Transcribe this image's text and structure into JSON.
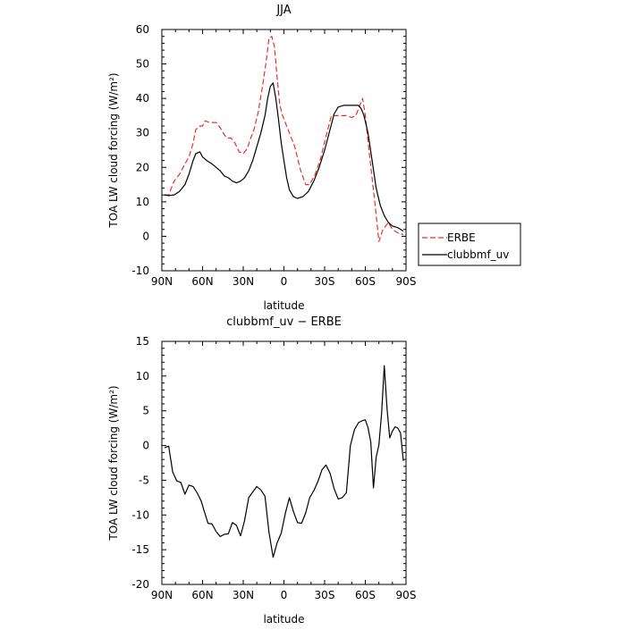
{
  "chart_data": [
    {
      "type": "line",
      "title": "JJA",
      "xlabel": "latitude",
      "ylabel": "TOA LW cloud forcing (W/m²)",
      "x_ticks": [
        {
          "value": -90,
          "label": "90N"
        },
        {
          "value": -60,
          "label": "60N"
        },
        {
          "value": -30,
          "label": "30N"
        },
        {
          "value": 0,
          "label": "0"
        },
        {
          "value": 30,
          "label": "30S"
        },
        {
          "value": 60,
          "label": "60S"
        },
        {
          "value": 90,
          "label": "90S"
        }
      ],
      "y_ticks": [
        -10,
        0,
        10,
        20,
        30,
        40,
        50,
        60
      ],
      "xlim": [
        -90,
        90
      ],
      "ylim": [
        -10,
        60
      ],
      "legend_position": "outside-right",
      "series": [
        {
          "name": "ERBE",
          "color": "#e8302a",
          "dashed": true,
          "x": [
            -88,
            -85,
            -81,
            -77,
            -73,
            -70,
            -67,
            -65,
            -62,
            -60,
            -58,
            -55,
            -50,
            -47,
            -44,
            -42,
            -39,
            -36,
            -33,
            -30,
            -27,
            -25,
            -22,
            -19,
            -16,
            -13,
            -11,
            -9,
            -7,
            -5,
            -3,
            -1,
            1,
            4,
            8,
            12,
            16,
            19,
            23,
            27,
            31,
            35,
            38,
            42,
            46,
            50,
            53,
            56,
            58,
            60,
            63,
            67,
            70,
            73,
            77,
            80,
            84,
            88
          ],
          "y": [
            12,
            12,
            16,
            18,
            21,
            23,
            27,
            31,
            32,
            32,
            33.5,
            33,
            33,
            31.5,
            29.5,
            28.5,
            28.5,
            27,
            24.5,
            24,
            25.5,
            28,
            31,
            36,
            43,
            51,
            57.5,
            58,
            55,
            46,
            38,
            35,
            33,
            30,
            26,
            19.5,
            15,
            15,
            18,
            22.5,
            29,
            35,
            35,
            35,
            35,
            34.5,
            35,
            38,
            40,
            35,
            24,
            10,
            -1.5,
            2,
            4,
            2,
            1,
            0.5
          ]
        },
        {
          "name": "clubbmf_uv",
          "color": "#000000",
          "dashed": false,
          "x": [
            -88,
            -85,
            -81,
            -77,
            -73,
            -70,
            -67,
            -65,
            -62,
            -60,
            -57,
            -53,
            -50,
            -47,
            -44,
            -41,
            -38,
            -35,
            -32,
            -29,
            -26,
            -23,
            -20,
            -17,
            -14,
            -12,
            -10,
            -8,
            -6,
            -4,
            -2,
            0,
            2,
            4,
            7,
            10,
            14,
            18,
            22,
            26,
            30,
            34,
            37,
            40,
            44,
            48,
            52,
            55,
            57,
            59,
            62,
            65,
            68,
            71,
            74,
            77,
            80,
            84,
            88
          ],
          "y": [
            12,
            11.8,
            12,
            13,
            15,
            18,
            22,
            24,
            24.5,
            23,
            22,
            21,
            20,
            19,
            17.5,
            17,
            16,
            15.5,
            16,
            17,
            19,
            22,
            26,
            30,
            35,
            40,
            43.5,
            44.5,
            40,
            34,
            27,
            22,
            17,
            13.5,
            11.5,
            11,
            11.5,
            13,
            16,
            20,
            25,
            31,
            35.5,
            37.5,
            38,
            38,
            38,
            38,
            37,
            35,
            30,
            22,
            14,
            9,
            6,
            4,
            3,
            2.5,
            1.5
          ]
        }
      ]
    },
    {
      "type": "line",
      "title": "clubbmf_uv − ERBE",
      "xlabel": "latitude",
      "ylabel": "TOA LW cloud forcing (W/m²)",
      "x_ticks": [
        {
          "value": -90,
          "label": "90N"
        },
        {
          "value": -60,
          "label": "60N"
        },
        {
          "value": -30,
          "label": "30N"
        },
        {
          "value": 0,
          "label": "0"
        },
        {
          "value": 30,
          "label": "30S"
        },
        {
          "value": 60,
          "label": "60S"
        },
        {
          "value": 90,
          "label": "90S"
        }
      ],
      "y_ticks": [
        -20,
        -15,
        -10,
        -5,
        0,
        5,
        10,
        15
      ],
      "xlim": [
        -90,
        90
      ],
      "ylim": [
        -20,
        15
      ],
      "series": [
        {
          "name": "",
          "color": "#000000",
          "dashed": false,
          "x": [
            -88,
            -85,
            -82,
            -79,
            -76,
            -73,
            -70,
            -67,
            -64,
            -61,
            -59,
            -56,
            -53,
            -50,
            -47,
            -44,
            -41,
            -38,
            -35,
            -32,
            -29,
            -26,
            -23,
            -20,
            -17,
            -14,
            -11,
            -8,
            -5,
            -2,
            1,
            4,
            7,
            10,
            13,
            16,
            19,
            22,
            25,
            28,
            31,
            34,
            37,
            40,
            43,
            46,
            49,
            52,
            55,
            58,
            60,
            62,
            64,
            66,
            68,
            70,
            72,
            74,
            76,
            78,
            80,
            82,
            84,
            86,
            88
          ],
          "y": [
            -0.3,
            -0.1,
            -3.8,
            -5.1,
            -5.3,
            -7,
            -5.7,
            -5.9,
            -6.8,
            -8,
            -9.3,
            -11.2,
            -11.3,
            -12.4,
            -13.1,
            -12.8,
            -12.7,
            -11.1,
            -11.5,
            -13,
            -10.8,
            -7.5,
            -6.7,
            -5.9,
            -6.4,
            -7.3,
            -12.5,
            -16.1,
            -14,
            -12.6,
            -9.8,
            -7.5,
            -9.5,
            -11.1,
            -11.2,
            -9.7,
            -7.5,
            -6.5,
            -5.2,
            -3.5,
            -2.8,
            -4,
            -6.2,
            -7.7,
            -7.5,
            -6.8,
            0,
            2.3,
            3.3,
            3.6,
            3.7,
            2.6,
            0.5,
            -6.1,
            -1.7,
            0.1,
            4.6,
            11.5,
            5.3,
            1.1,
            2.1,
            2.7,
            2.5,
            1.8,
            -2.2
          ]
        }
      ]
    }
  ]
}
